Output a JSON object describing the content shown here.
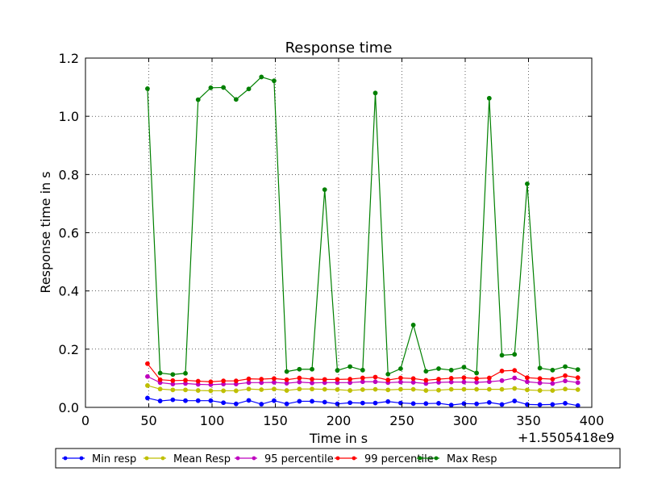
{
  "chart_data": {
    "type": "line",
    "title": "Response time",
    "xlabel": "Time in s",
    "ylabel": "Response time in s",
    "x_offset_label": "+1.5505418e9",
    "xlim": [
      0,
      400
    ],
    "ylim": [
      0,
      1.2
    ],
    "xticks": [
      "0",
      "50",
      "100",
      "150",
      "200",
      "250",
      "300",
      "350",
      "400"
    ],
    "yticks": [
      "0.0",
      "0.2",
      "0.4",
      "0.6",
      "0.8",
      "1.0",
      "1.2"
    ],
    "grid": true,
    "legend_position": "bottom",
    "x": [
      49,
      59,
      69,
      79,
      89,
      99,
      109,
      119,
      129,
      139,
      149,
      159,
      169,
      179,
      189,
      199,
      209,
      219,
      229,
      239,
      249,
      259,
      269,
      279,
      289,
      299,
      309,
      319,
      329,
      339,
      349,
      359,
      369,
      379,
      389
    ],
    "series": [
      {
        "name": "Min resp",
        "color": "#0000ff",
        "values": [
          0.032,
          0.022,
          0.026,
          0.023,
          0.023,
          0.023,
          0.016,
          0.012,
          0.024,
          0.011,
          0.023,
          0.012,
          0.021,
          0.021,
          0.018,
          0.012,
          0.016,
          0.015,
          0.015,
          0.02,
          0.015,
          0.013,
          0.013,
          0.014,
          0.008,
          0.013,
          0.012,
          0.017,
          0.01,
          0.022,
          0.01,
          0.009,
          0.01,
          0.014,
          0.006
        ]
      },
      {
        "name": "Mean Resp",
        "color": "#bfbf00",
        "values": [
          0.075,
          0.063,
          0.06,
          0.06,
          0.058,
          0.057,
          0.057,
          0.057,
          0.063,
          0.061,
          0.063,
          0.058,
          0.063,
          0.063,
          0.062,
          0.061,
          0.058,
          0.061,
          0.062,
          0.06,
          0.062,
          0.062,
          0.058,
          0.059,
          0.062,
          0.062,
          0.062,
          0.062,
          0.062,
          0.065,
          0.06,
          0.058,
          0.058,
          0.063,
          0.061
        ]
      },
      {
        "name": "95 percentile",
        "color": "#bf00bf",
        "values": [
          0.106,
          0.085,
          0.08,
          0.082,
          0.079,
          0.078,
          0.08,
          0.08,
          0.085,
          0.085,
          0.086,
          0.083,
          0.087,
          0.084,
          0.085,
          0.085,
          0.085,
          0.088,
          0.088,
          0.085,
          0.087,
          0.086,
          0.082,
          0.086,
          0.087,
          0.087,
          0.086,
          0.088,
          0.092,
          0.101,
          0.088,
          0.084,
          0.082,
          0.091,
          0.085
        ]
      },
      {
        "name": "99 percentile",
        "color": "#ff0000",
        "values": [
          0.15,
          0.095,
          0.092,
          0.093,
          0.09,
          0.088,
          0.091,
          0.091,
          0.098,
          0.097,
          0.099,
          0.095,
          0.101,
          0.097,
          0.096,
          0.096,
          0.097,
          0.101,
          0.104,
          0.094,
          0.101,
          0.099,
          0.093,
          0.097,
          0.1,
          0.102,
          0.099,
          0.101,
          0.125,
          0.127,
          0.102,
          0.099,
          0.097,
          0.109,
          0.102
        ]
      },
      {
        "name": "Max Resp",
        "color": "#008000",
        "values": [
          1.095,
          0.118,
          0.113,
          0.117,
          1.057,
          1.098,
          1.099,
          1.058,
          1.094,
          1.135,
          1.122,
          0.123,
          0.131,
          0.131,
          0.748,
          0.127,
          0.14,
          0.128,
          1.08,
          0.114,
          0.133,
          0.283,
          0.124,
          0.133,
          0.128,
          0.138,
          0.118,
          1.062,
          0.179,
          0.182,
          0.768,
          0.135,
          0.128,
          0.14,
          0.13
        ]
      }
    ]
  }
}
